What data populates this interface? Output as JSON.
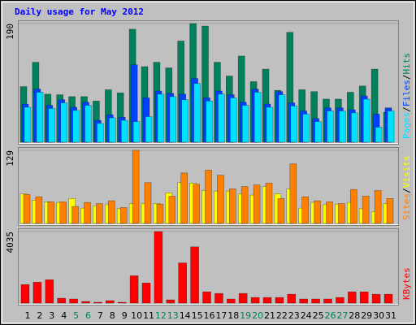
{
  "chart_data": [
    {
      "type": "bar",
      "title": "Daily usage for May 2012",
      "ylim": [
        0,
        190
      ],
      "yticks": [
        190
      ],
      "legend_separator": "/",
      "series": [
        {
          "name": "Hits",
          "color": "#00805c",
          "values": [
            89,
            128,
            77,
            76,
            73,
            73,
            66,
            84,
            79,
            181,
            121,
            128,
            119,
            162,
            190,
            186,
            128,
            106,
            138,
            97,
            117,
            83,
            176,
            84,
            81,
            69,
            69,
            80,
            90,
            117,
            48
          ]
        },
        {
          "name": "Files",
          "color": "#0040ff",
          "values": [
            61,
            85,
            59,
            68,
            56,
            64,
            35,
            44,
            40,
            124,
            71,
            82,
            78,
            77,
            102,
            71,
            82,
            76,
            64,
            85,
            61,
            81,
            63,
            50,
            38,
            55,
            55,
            52,
            74,
            45,
            55
          ]
        },
        {
          "name": "Pages",
          "color": "#00e0ff",
          "values": [
            56,
            80,
            54,
            63,
            51,
            59,
            30,
            39,
            35,
            33,
            41,
            77,
            73,
            68,
            94,
            66,
            77,
            71,
            59,
            80,
            56,
            76,
            58,
            45,
            33,
            50,
            50,
            47,
            69,
            24,
            50
          ]
        }
      ]
    },
    {
      "type": "bar",
      "ylim": [
        0,
        129
      ],
      "yticks": [
        129
      ],
      "legend_separator": "/",
      "series": [
        {
          "name": "Visits",
          "color": "#ffff00",
          "values": [
            52,
            41,
            38,
            37,
            44,
            27,
            31,
            33,
            26,
            35,
            35,
            35,
            54,
            72,
            71,
            58,
            57,
            57,
            52,
            50,
            65,
            52,
            61,
            27,
            37,
            33,
            34,
            37,
            26,
            21,
            35
          ]
        },
        {
          "name": "Sites",
          "color": "#ff8000",
          "values": [
            51,
            47,
            38,
            38,
            30,
            37,
            35,
            40,
            28,
            129,
            72,
            34,
            48,
            89,
            69,
            94,
            85,
            61,
            65,
            68,
            71,
            44,
            105,
            47,
            40,
            38,
            35,
            60,
            48,
            58,
            44
          ]
        }
      ]
    },
    {
      "type": "bar",
      "ylim": [
        0,
        4035
      ],
      "yticks": [
        4035
      ],
      "categories": [
        "1",
        "2",
        "3",
        "4",
        "5",
        "6",
        "7",
        "8",
        "9",
        "10",
        "11",
        "12",
        "13",
        "14",
        "15",
        "16",
        "17",
        "18",
        "19",
        "20",
        "21",
        "22",
        "23",
        "24",
        "25",
        "26",
        "27",
        "28",
        "29",
        "30",
        "31"
      ],
      "category_colors": [
        "#000000",
        "#000000",
        "#000000",
        "#000000",
        "#00805c",
        "#00805c",
        "#000000",
        "#000000",
        "#000000",
        "#000000",
        "#000000",
        "#00805c",
        "#00805c",
        "#000000",
        "#000000",
        "#000000",
        "#000000",
        "#000000",
        "#00805c",
        "#00805c",
        "#000000",
        "#000000",
        "#000000",
        "#000000",
        "#000000",
        "#00805c",
        "#00805c",
        "#000000",
        "#000000",
        "#000000",
        "#000000"
      ],
      "series": [
        {
          "name": "KBytes",
          "color": "#ff0000",
          "values": [
            1042,
            1178,
            1314,
            272,
            227,
            91,
            45,
            136,
            45,
            1540,
            1133,
            4035,
            181,
            2266,
            3173,
            634,
            544,
            227,
            544,
            317,
            317,
            317,
            498,
            227,
            227,
            227,
            317,
            634,
            634,
            498,
            498
          ]
        }
      ]
    }
  ]
}
